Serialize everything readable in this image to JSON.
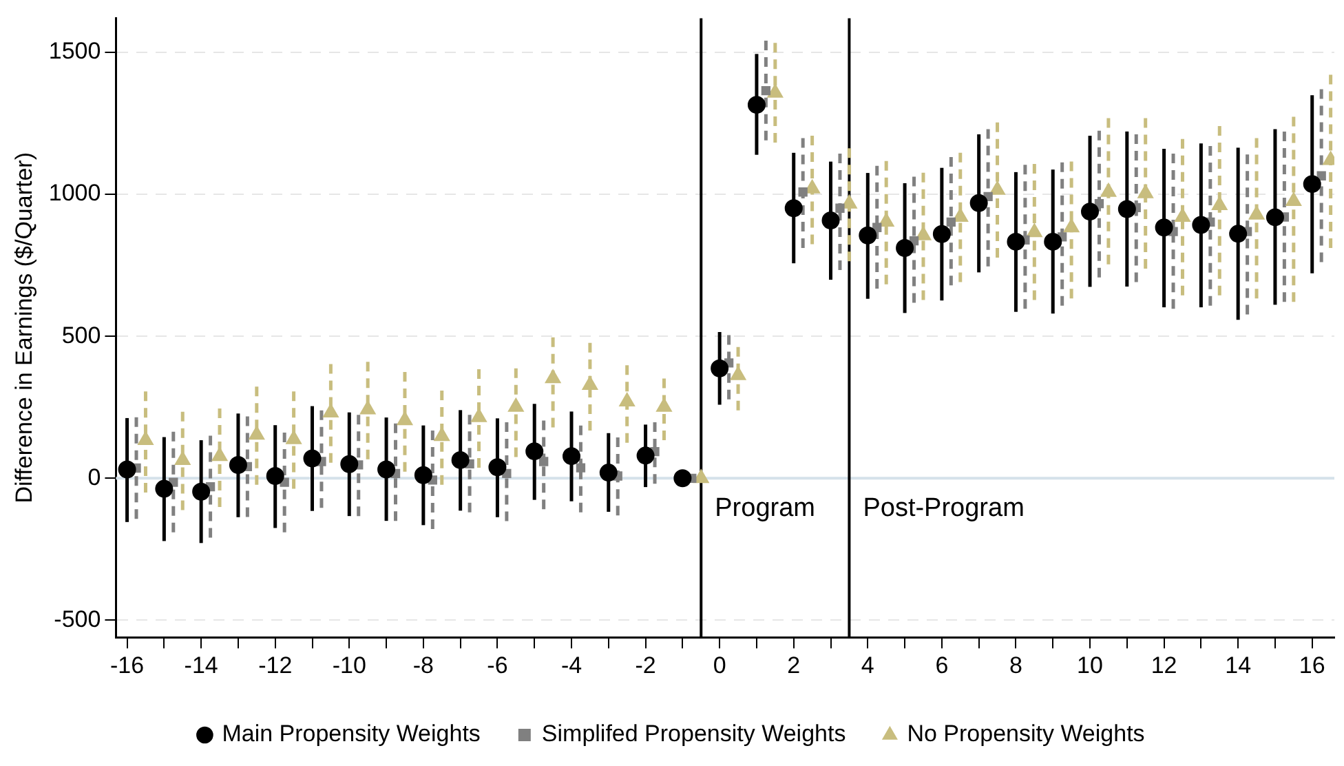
{
  "chart_data": {
    "type": "scatter",
    "ylabel": "Difference in Earnings ($/Quarter)",
    "xlim": [
      -16.3,
      16.6
    ],
    "ylim": [
      -560,
      1620
    ],
    "xticks": [
      -16,
      {
        "value": -15,
        "label": null
      },
      -14,
      {
        "value": -13,
        "label": null
      },
      -12,
      {
        "value": -11,
        "label": null
      },
      -10,
      {
        "value": -9,
        "label": null
      },
      -8,
      {
        "value": -7,
        "label": null
      },
      -6,
      {
        "value": -5,
        "label": null
      },
      -4,
      {
        "value": -3,
        "label": null
      },
      -2,
      {
        "value": -1,
        "label": null
      },
      0,
      {
        "value": 1,
        "label": null
      },
      2,
      {
        "value": 3,
        "label": null
      },
      4,
      {
        "value": 5,
        "label": null
      },
      6,
      {
        "value": 7,
        "label": null
      },
      8,
      {
        "value": 9,
        "label": null
      },
      10,
      {
        "value": 11,
        "label": null
      },
      12,
      {
        "value": 13,
        "label": null
      },
      14,
      {
        "value": 15,
        "label": null
      },
      16
    ],
    "yticks": [
      -500,
      0,
      500,
      1000,
      1500
    ],
    "grid": "y",
    "legend": "bottom",
    "ref_lines": [
      {
        "axis": "y",
        "value": 0,
        "label": null,
        "color": "#d5e1ea"
      },
      {
        "axis": "x",
        "value": -0.5,
        "label": "Program",
        "color": "#000000"
      },
      {
        "axis": "x",
        "value": 3.5,
        "label": "Post-Program",
        "color": "#000000"
      }
    ],
    "series": [
      {
        "name": "Main Propensity Weights",
        "color": "#000000",
        "marker": "circle",
        "line_style": "solid",
        "x": [
          -16,
          -15,
          -14,
          -13,
          -12,
          -11,
          -10,
          -9,
          -8,
          -7,
          -6,
          -5,
          -4,
          -3,
          -2,
          -1,
          0,
          1,
          2,
          3,
          4,
          5,
          6,
          7,
          8,
          9,
          10,
          11,
          12,
          13,
          14,
          15,
          16
        ],
        "values": [
          31,
          -37,
          -47,
          47,
          8,
          70,
          50,
          31,
          11,
          64,
          39,
          95,
          78,
          20,
          80,
          0,
          387,
          1315,
          951,
          908,
          855,
          811,
          860,
          969,
          833,
          833,
          939,
          948,
          883,
          892,
          861,
          919,
          1036
        ],
        "errors": [
          [
            -154,
            212
          ],
          [
            -221,
            145
          ],
          [
            -228,
            134
          ],
          [
            -137,
            228
          ],
          [
            -175,
            187
          ],
          [
            -115,
            254
          ],
          [
            -133,
            232
          ],
          [
            -150,
            214
          ],
          [
            -165,
            186
          ],
          [
            -114,
            240
          ],
          [
            -137,
            211
          ],
          [
            -76,
            262
          ],
          [
            -81,
            235
          ],
          [
            -118,
            159
          ],
          [
            -31,
            189
          ],
          null,
          [
            259,
            515
          ],
          [
            1139,
            1494
          ],
          [
            757,
            1146
          ],
          [
            699,
            1115
          ],
          [
            632,
            1075
          ],
          [
            582,
            1039
          ],
          [
            626,
            1093
          ],
          [
            725,
            1211
          ],
          [
            586,
            1078
          ],
          [
            580,
            1087
          ],
          [
            674,
            1206
          ],
          [
            675,
            1221
          ],
          [
            602,
            1160
          ],
          [
            602,
            1179
          ],
          [
            558,
            1164
          ],
          [
            611,
            1229
          ],
          [
            722,
            1349
          ]
        ]
      },
      {
        "name": "Simplifed Propensity Weights",
        "color": "#808080",
        "marker": "square",
        "line_style": "dashed",
        "x": [
          -15.75,
          -14.75,
          -13.75,
          -12.75,
          -11.75,
          -10.75,
          -9.75,
          -8.75,
          -7.75,
          -6.75,
          -5.75,
          -4.75,
          -3.75,
          -2.75,
          -1.75,
          -0.75,
          0.25,
          1.25,
          2.25,
          3.25,
          4.25,
          5.25,
          6.25,
          7.25,
          8.25,
          9.25,
          10.25,
          11.25,
          12.25,
          13.25,
          14.25,
          15.25,
          16.25
        ],
        "values": [
          36,
          -14,
          -30,
          41,
          -14,
          59,
          47,
          17,
          -6,
          51,
          17,
          59,
          37,
          8,
          94,
          0,
          406,
          1365,
          1008,
          951,
          883,
          836,
          902,
          992,
          839,
          850,
          967,
          953,
          869,
          902,
          869,
          920,
          1065
        ],
        "errors": [
          [
            -143,
            215
          ],
          [
            -190,
            164
          ],
          [
            -209,
            150
          ],
          [
            -136,
            218
          ],
          [
            -190,
            161
          ],
          [
            -104,
            239
          ],
          [
            -133,
            223
          ],
          [
            -150,
            193
          ],
          [
            -179,
            168
          ],
          [
            -120,
            223
          ],
          [
            -151,
            197
          ],
          [
            -109,
            203
          ],
          [
            -120,
            186
          ],
          [
            -131,
            144
          ],
          [
            -19,
            197
          ],
          null,
          [
            278,
            504
          ],
          [
            1190,
            1541
          ],
          [
            811,
            1198
          ],
          [
            733,
            1143
          ],
          [
            668,
            1100
          ],
          [
            618,
            1062
          ],
          [
            679,
            1131
          ],
          [
            746,
            1229
          ],
          [
            597,
            1104
          ],
          [
            608,
            1112
          ],
          [
            707,
            1224
          ],
          [
            691,
            1211
          ],
          [
            597,
            1143
          ],
          [
            608,
            1170
          ],
          [
            577,
            1140
          ],
          [
            621,
            1221
          ],
          [
            761,
            1370
          ]
        ]
      },
      {
        "name": "No Propensity Weights",
        "color": "#c8bd7e",
        "marker": "triangle",
        "line_style": "dashed",
        "x": [
          -15.5,
          -14.5,
          -13.5,
          -12.5,
          -11.5,
          -10.5,
          -9.5,
          -8.5,
          -7.5,
          -6.5,
          -5.5,
          -4.5,
          -3.5,
          -2.5,
          -1.5,
          -0.5,
          0.5,
          1.5,
          2.5,
          3.5,
          4.5,
          5.5,
          6.5,
          7.5,
          8.5,
          9.5,
          10.5,
          11.5,
          12.5,
          13.5,
          14.5,
          15.5,
          16.5
        ],
        "values": [
          134,
          64,
          78,
          153,
          137,
          231,
          242,
          204,
          148,
          215,
          251,
          352,
          328,
          270,
          251,
          0,
          363,
          1357,
          1020,
          967,
          903,
          855,
          920,
          1015,
          866,
          883,
          1008,
          1003,
          920,
          961,
          928,
          976,
          1120
        ],
        "errors": [
          [
            -50,
            306
          ],
          [
            -112,
            234
          ],
          [
            -101,
            246
          ],
          [
            -23,
            323
          ],
          [
            -37,
            306
          ],
          [
            55,
            402
          ],
          [
            67,
            410
          ],
          [
            23,
            374
          ],
          [
            -23,
            309
          ],
          [
            37,
            384
          ],
          [
            75,
            387
          ],
          [
            179,
            496
          ],
          [
            168,
            477
          ],
          [
            125,
            398
          ],
          [
            134,
            351
          ],
          null,
          [
            239,
            462
          ],
          [
            1182,
            1533
          ],
          [
            824,
            1206
          ],
          [
            764,
            1162
          ],
          [
            683,
            1117
          ],
          [
            628,
            1076
          ],
          [
            691,
            1146
          ],
          [
            777,
            1253
          ],
          [
            628,
            1107
          ],
          [
            633,
            1115
          ],
          [
            753,
            1268
          ],
          [
            738,
            1268
          ],
          [
            644,
            1195
          ],
          [
            644,
            1240
          ],
          [
            633,
            1198
          ],
          [
            621,
            1273
          ],
          [
            811,
            1421
          ]
        ]
      }
    ]
  }
}
